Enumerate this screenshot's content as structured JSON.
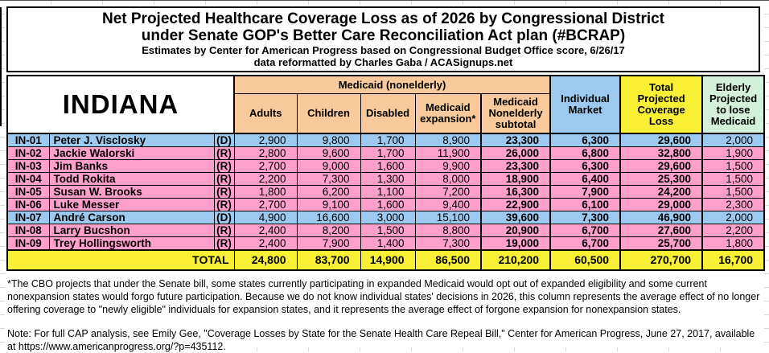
{
  "title": {
    "line1": "Net Projected Healthcare Coverage Loss as of 2026 by Congressional District",
    "line2": "under Senate GOP's Better Care Reconciliation Act plan (#BCRAP)",
    "line3": "Estimates by Center for American Progress based on Congressional Budget Office score, 6/26/17",
    "line4": "data reformatted by Charles Gaba / ACASignups.net"
  },
  "table": {
    "state_label": "INDIANA",
    "header": {
      "medicaid_group": "Medicaid (nonelderly)",
      "sub_columns": [
        "Adults",
        "Children",
        "Disabled",
        "Medicaid expansion*",
        "Medicaid Nonelderly subtotal"
      ],
      "individual_market": "Individual Market",
      "total_loss": "Total Projected Coverage Loss",
      "elderly": "Elderly Projected to lose Medicaid"
    },
    "rows": [
      {
        "district": "IN-01",
        "rep": "Peter J. Visclosky",
        "party": "(D)",
        "values": [
          "2,900",
          "9,800",
          "1,700",
          "8,900",
          "23,300",
          "6,300",
          "29,600",
          "2,000"
        ]
      },
      {
        "district": "IN-02",
        "rep": "Jackie Walorski",
        "party": "(R)",
        "values": [
          "2,800",
          "9,600",
          "1,700",
          "11,900",
          "26,000",
          "6,800",
          "32,800",
          "1,900"
        ]
      },
      {
        "district": "IN-03",
        "rep": "Jim Banks",
        "party": "(R)",
        "values": [
          "2,700",
          "9,000",
          "1,600",
          "9,900",
          "23,300",
          "6,300",
          "29,600",
          "1,500"
        ]
      },
      {
        "district": "IN-04",
        "rep": "Todd Rokita",
        "party": "(R)",
        "values": [
          "2,200",
          "7,300",
          "1,300",
          "8,000",
          "18,900",
          "6,400",
          "25,300",
          "1,500"
        ]
      },
      {
        "district": "IN-05",
        "rep": "Susan W. Brooks",
        "party": "(R)",
        "values": [
          "1,800",
          "6,200",
          "1,100",
          "7,200",
          "16,300",
          "7,900",
          "24,200",
          "1,500"
        ]
      },
      {
        "district": "IN-06",
        "rep": "Luke Messer",
        "party": "(R)",
        "values": [
          "2,700",
          "9,100",
          "1,600",
          "9,400",
          "22,900",
          "6,100",
          "29,000",
          "2,300"
        ]
      },
      {
        "district": "IN-07",
        "rep": "André Carson",
        "party": "(D)",
        "values": [
          "4,900",
          "16,600",
          "3,000",
          "15,100",
          "39,600",
          "7,300",
          "46,900",
          "2,000"
        ]
      },
      {
        "district": "IN-08",
        "rep": "Larry Bucshon",
        "party": "(R)",
        "values": [
          "2,400",
          "8,200",
          "1,500",
          "8,800",
          "20,900",
          "6,700",
          "27,600",
          "2,200"
        ]
      },
      {
        "district": "IN-09",
        "rep": "Trey Hollingsworth",
        "party": "(R)",
        "values": [
          "2,400",
          "7,900",
          "1,400",
          "7,300",
          "19,000",
          "6,700",
          "25,700",
          "1,800"
        ]
      }
    ],
    "total": {
      "label": "TOTAL",
      "values": [
        "24,800",
        "83,700",
        "14,900",
        "86,500",
        "210,200",
        "60,500",
        "270,700",
        "16,700"
      ]
    }
  },
  "footnotes": {
    "expansion_note": "*The CBO projects that under the Senate bill, some states currently participating in expanded Medicaid would opt out of expanded eligibility and some current nonexpansion states would forgo future participation. Because we do not know individual states' decisions in 2026, this column represents the average effect of no longer offering coverage to \"newly eligible\" individuals for expansion states, and it represents the average effect of forgone expansion for nonexpansion states.",
    "cap_note_text": "Note: For full CAP analysis, see Emily Gee, \"Coverage Losses by State for the Senate Health Care Repeal Bill,\" Center for American Progress, June 27, 2017, available at",
    "cap_note_url": "https://www.americanprogress.org/?p=435112."
  },
  "colors": {
    "democrat_row": "#9CC9F0",
    "republican_row": "#FF9FCB",
    "medicaid_header_peach": "#F8CA9B",
    "individual_market_header_blue": "#9CC9F0",
    "coverage_loss_yellow": "#F9F036",
    "elderly_header_green": "#D3F1DA",
    "border_black": "#000000"
  },
  "chart_data": {
    "type": "table",
    "title": "Net Projected Healthcare Coverage Loss as of 2026 by Congressional District under Senate GOP's Better Care Reconciliation Act plan (#BCRAP)",
    "subtitle": "Estimates by Center for American Progress based on Congressional Budget Office score, 6/26/17; data reformatted by Charles Gaba / ACASignups.net",
    "state": "INDIANA",
    "columns": [
      "District",
      "Representative",
      "Party",
      "Adults",
      "Children",
      "Disabled",
      "Medicaid expansion*",
      "Medicaid Nonelderly subtotal",
      "Individual Market",
      "Total Projected Coverage Loss",
      "Elderly Projected to lose Medicaid"
    ],
    "rows": [
      [
        "IN-01",
        "Peter J. Visclosky",
        "(D)",
        2900,
        9800,
        1700,
        8900,
        23300,
        6300,
        29600,
        2000
      ],
      [
        "IN-02",
        "Jackie Walorski",
        "(R)",
        2800,
        9600,
        1700,
        11900,
        26000,
        6800,
        32800,
        1900
      ],
      [
        "IN-03",
        "Jim Banks",
        "(R)",
        2700,
        9000,
        1600,
        9900,
        23300,
        6300,
        29600,
        1500
      ],
      [
        "IN-04",
        "Todd Rokita",
        "(R)",
        2200,
        7300,
        1300,
        8000,
        18900,
        6400,
        25300,
        1500
      ],
      [
        "IN-05",
        "Susan W. Brooks",
        "(R)",
        1800,
        6200,
        1100,
        7200,
        16300,
        7900,
        24200,
        1500
      ],
      [
        "IN-06",
        "Luke Messer",
        "(R)",
        2700,
        9100,
        1600,
        9400,
        22900,
        6100,
        29000,
        2300
      ],
      [
        "IN-07",
        "André Carson",
        "(D)",
        4900,
        16600,
        3000,
        15100,
        39600,
        7300,
        46900,
        2000
      ],
      [
        "IN-08",
        "Larry Bucshon",
        "(R)",
        2400,
        8200,
        1500,
        8800,
        20900,
        6700,
        27600,
        2200
      ],
      [
        "IN-09",
        "Trey Hollingsworth",
        "(R)",
        2400,
        7900,
        1400,
        7300,
        19000,
        6700,
        25700,
        1800
      ]
    ],
    "total_row": [
      "TOTAL",
      24800,
      83700,
      14900,
      86500,
      210200,
      60500,
      270700,
      16700
    ]
  }
}
